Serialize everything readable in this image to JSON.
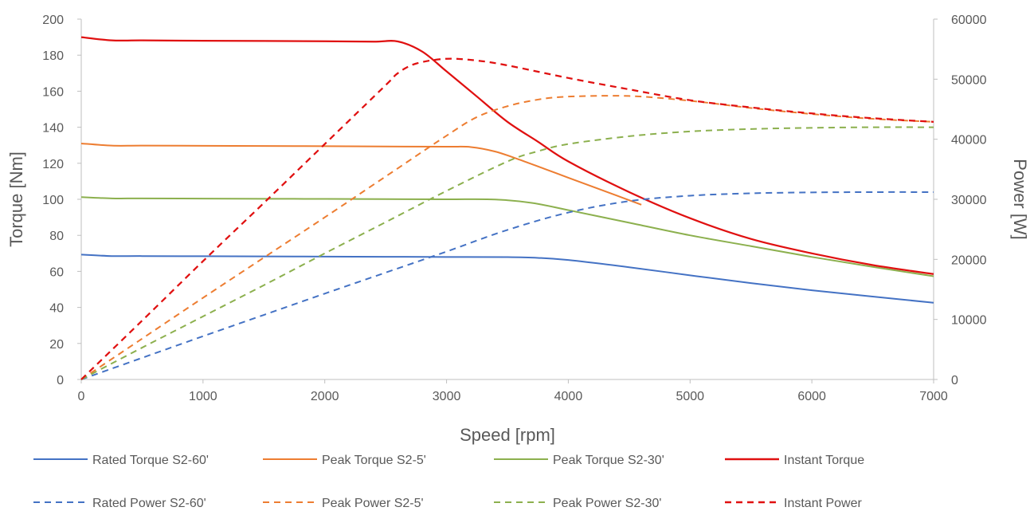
{
  "chart_data": {
    "type": "line",
    "title": "",
    "xlabel": "Speed [rpm]",
    "ylabel_left": "Torque [Nm]",
    "ylabel_right": "Power [W]",
    "xlim": [
      0,
      7000
    ],
    "ylim_left": [
      0,
      200
    ],
    "ylim_right": [
      0,
      60000
    ],
    "x_ticks": [
      "0",
      "1000",
      "2000",
      "3000",
      "4000",
      "5000",
      "6000",
      "7000"
    ],
    "y_left_ticks": [
      "0",
      "20",
      "40",
      "60",
      "80",
      "100",
      "120",
      "140",
      "160",
      "180",
      "200"
    ],
    "y_right_ticks": [
      "0",
      "10000",
      "20000",
      "30000",
      "40000",
      "50000",
      "60000"
    ],
    "grid": false,
    "legend_position": "bottom",
    "series": [
      {
        "name": "Rated Torque S2-60'",
        "axis": "left",
        "color": "#4472C4",
        "dash": "solid",
        "x": [
          0,
          250,
          500,
          1000,
          1500,
          2000,
          2500,
          3000,
          3500,
          3750,
          4000,
          4500,
          5000,
          5500,
          6000,
          6500,
          7000
        ],
        "y": [
          69.3,
          68.5,
          68.5,
          68.4,
          68.3,
          68.2,
          68.1,
          68.0,
          67.9,
          67.5,
          66.3,
          62.3,
          57.8,
          53.5,
          49.5,
          46.0,
          42.6
        ]
      },
      {
        "name": "Peak Torque S2-5'",
        "axis": "left",
        "color": "#ED7D31",
        "dash": "solid",
        "x": [
          0,
          250,
          500,
          1000,
          1500,
          2000,
          2500,
          3000,
          3200,
          3400,
          3600,
          3800,
          4000,
          4200,
          4400,
          4600
        ],
        "y": [
          131,
          129.8,
          129.8,
          129.7,
          129.6,
          129.5,
          129.3,
          129.2,
          129.0,
          126.5,
          122.0,
          117.0,
          112.0,
          107.0,
          102.0,
          97.0
        ]
      },
      {
        "name": "Peak Torque S2-30'",
        "axis": "left",
        "color": "#8CB04E",
        "dash": "solid",
        "x": [
          0,
          250,
          500,
          1000,
          1500,
          2000,
          2500,
          3000,
          3400,
          3700,
          4000,
          4500,
          5000,
          5500,
          6000,
          6500,
          7000
        ],
        "y": [
          101.2,
          100.5,
          100.5,
          100.4,
          100.3,
          100.2,
          100.1,
          100.0,
          99.9,
          98.0,
          94.0,
          87.0,
          80.0,
          74.0,
          68.0,
          62.5,
          57.3
        ]
      },
      {
        "name": "Instant Torque",
        "axis": "left",
        "color": "#E01010",
        "dash": "solid",
        "x": [
          0,
          250,
          500,
          1000,
          1500,
          2000,
          2400,
          2600,
          2800,
          3000,
          3250,
          3500,
          3750,
          4000,
          4500,
          5000,
          5500,
          6000,
          6500,
          7000
        ],
        "y": [
          190,
          188.2,
          188.2,
          188.0,
          187.9,
          187.7,
          187.5,
          187.6,
          182.0,
          171.0,
          157.0,
          143.0,
          132.0,
          121.0,
          104.0,
          89.5,
          78.0,
          70.0,
          63.5,
          58.5
        ]
      },
      {
        "name": "Rated Power S2-60'",
        "axis": "right",
        "color": "#4472C4",
        "dash": "dashed",
        "x": [
          0,
          500,
          1000,
          1500,
          2000,
          2500,
          3000,
          3500,
          4000,
          4500,
          5000,
          5500,
          6000,
          6500,
          7000
        ],
        "y": [
          0,
          3600,
          7200,
          10750,
          14300,
          17800,
          21300,
          24900,
          27800,
          29700,
          30600,
          31000,
          31150,
          31200,
          31200
        ]
      },
      {
        "name": "Peak Power S2-5'",
        "axis": "right",
        "color": "#ED7D31",
        "dash": "dashed",
        "x": [
          0,
          500,
          1000,
          1500,
          2000,
          2500,
          3000,
          3250,
          3500,
          3750,
          4000,
          4500,
          5000,
          5500,
          6000,
          6500,
          7000
        ],
        "y": [
          0,
          6800,
          13600,
          20300,
          27000,
          33800,
          40600,
          43700,
          45500,
          46600,
          47100,
          47200,
          46400,
          45200,
          44200,
          43400,
          42900
        ]
      },
      {
        "name": "Peak Power S2-30'",
        "axis": "right",
        "color": "#8CB04E",
        "dash": "dashed",
        "x": [
          0,
          500,
          1000,
          1500,
          2000,
          2500,
          3000,
          3500,
          3750,
          4000,
          4500,
          5000,
          5500,
          6000,
          6500,
          7000
        ],
        "y": [
          0,
          5300,
          10500,
          15700,
          21000,
          26200,
          31400,
          36300,
          38000,
          39200,
          40500,
          41300,
          41700,
          41900,
          42000,
          42000
        ]
      },
      {
        "name": "Instant Power",
        "axis": "right",
        "color": "#E01010",
        "dash": "dashed",
        "x": [
          0,
          500,
          1000,
          1500,
          2000,
          2500,
          2600,
          2750,
          3000,
          3250,
          3500,
          4000,
          4500,
          5000,
          5500,
          6000,
          6500,
          7000
        ],
        "y": [
          0,
          9800,
          19700,
          29400,
          39200,
          49000,
          51000,
          52600,
          53400,
          53100,
          52300,
          50200,
          48300,
          46500,
          45300,
          44300,
          43500,
          42900
        ]
      }
    ]
  }
}
